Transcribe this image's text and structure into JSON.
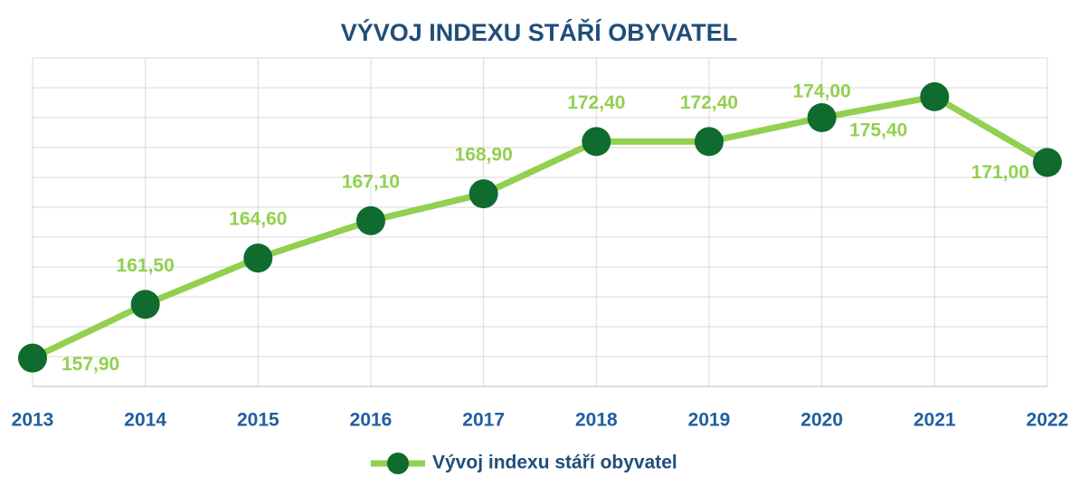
{
  "chart_data": {
    "type": "line",
    "title": "VÝVOJ INDEXU STÁŘÍ OBYVATEL",
    "categories": [
      "2013",
      "2014",
      "2015",
      "2016",
      "2017",
      "2018",
      "2019",
      "2020",
      "2021",
      "2022"
    ],
    "series": [
      {
        "name": "Vývoj indexu stáří obyvatel",
        "color": "#92d050",
        "marker_color": "#0f6b2e",
        "values": [
          157.9,
          161.5,
          164.6,
          167.1,
          168.9,
          172.4,
          172.4,
          174.0,
          175.4,
          171.0
        ],
        "value_labels": [
          "157,90",
          "161,50",
          "164,60",
          "167,10",
          "168,90",
          "172,40",
          "172,40",
          "174,00",
          "175,40",
          "171,00"
        ]
      }
    ],
    "ylim": [
      156,
      178
    ],
    "yticks": [
      156,
      158,
      160,
      162,
      164,
      166,
      168,
      170,
      172,
      174,
      176,
      178
    ],
    "grid": true,
    "legend": "bottom"
  }
}
